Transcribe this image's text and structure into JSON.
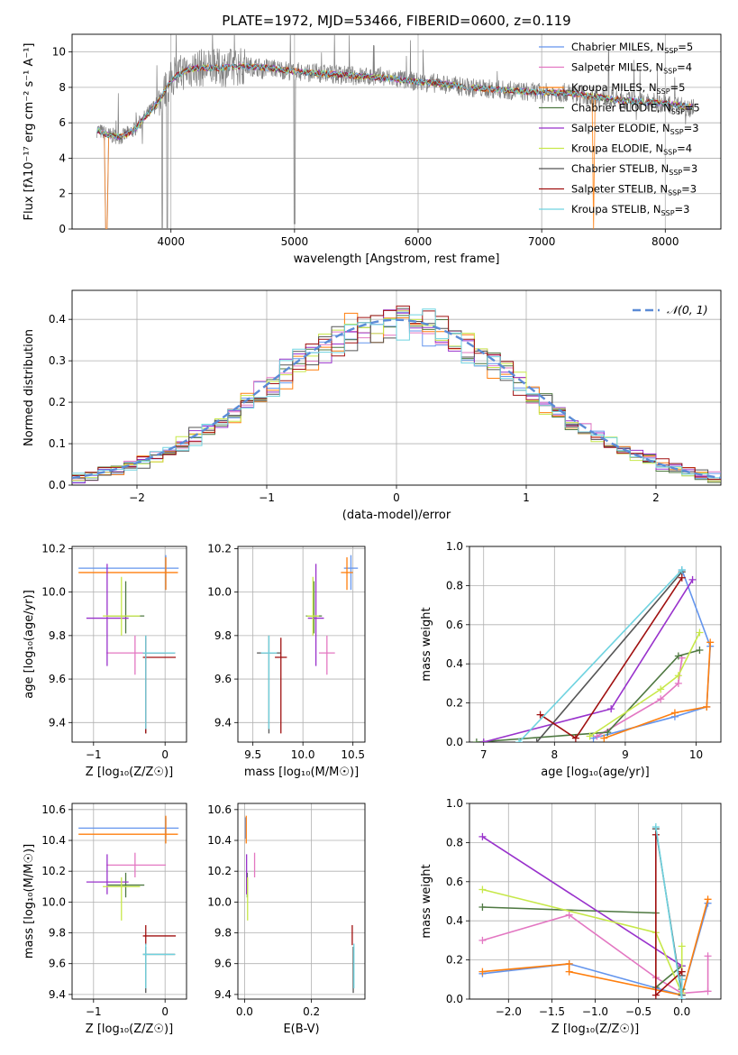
{
  "figure_title": "PLATE=1972, MJD=53466, FIBERID=0600, z=0.119",
  "colors": {
    "chabrier_miles": "#6495ed",
    "salpeter_miles": "#e377c2",
    "kroupa_miles": "#ff7f0e",
    "chabrier_elodie": "#4f7942",
    "salpeter_elodie": "#9932cc",
    "kroupa_elodie": "#c7e84a",
    "chabrier_stelib": "#555555",
    "salpeter_stelib": "#a01010",
    "kroupa_stelib": "#6fd3e0",
    "data": "#808080",
    "grid": "#b0b0b0"
  },
  "legend_spectrum": [
    "Chabrier MILES, N_SSP=5",
    "Salpeter MILES, N_SSP=4",
    "Kroupa MILES, N_SSP=5",
    "Chabrier ELODIE, N_SSP=5",
    "Salpeter ELODIE, N_SSP=3",
    "Kroupa ELODIE, N_SSP=4",
    "Chabrier STELIB, N_SSP=3",
    "Salpeter STELIB, N_SSP=3",
    "Kroupa STELIB, N_SSP=3"
  ],
  "legend_hist": "𝒩(0, 1)",
  "chart_data": [
    {
      "id": "spectrum",
      "type": "line",
      "xlabel": "wavelength [Angstrom, rest frame]",
      "ylabel": "Flux [fλ10⁻¹⁷ erg cm⁻² s⁻¹ A⁻¹]",
      "xlim": [
        3200,
        8450
      ],
      "ylim": [
        0,
        11
      ],
      "xticks": [
        4000,
        5000,
        6000,
        7000,
        8000
      ],
      "yticks": [
        0,
        2,
        4,
        6,
        8,
        10
      ],
      "continuum_x": [
        3400,
        3500,
        3600,
        3700,
        3800,
        3900,
        4000,
        4100,
        4200,
        4400,
        4600,
        4800,
        5000,
        5200,
        5400,
        5600,
        5800,
        6000,
        6200,
        6400,
        6600,
        6800,
        7000,
        7200,
        7400,
        7600,
        7800,
        8000,
        8200
      ],
      "continuum_y": [
        5.6,
        5.3,
        5.2,
        5.6,
        6.4,
        7.2,
        8.4,
        8.9,
        9.1,
        9.1,
        9.2,
        9.1,
        8.9,
        8.8,
        8.7,
        8.6,
        8.5,
        8.3,
        8.2,
        8.0,
        7.9,
        7.8,
        7.7,
        7.7,
        7.5,
        7.3,
        7.2,
        7.1,
        6.9
      ]
    },
    {
      "id": "residual_hist",
      "type": "line",
      "xlabel": "(data-model)/error",
      "ylabel": "Normed distribution",
      "xlim": [
        -2.5,
        2.5
      ],
      "ylim": [
        0,
        0.47
      ],
      "xticks": [
        -2,
        -1,
        0,
        1,
        2
      ],
      "yticks": [
        0.0,
        0.1,
        0.2,
        0.3,
        0.4
      ],
      "normal_mu": 0,
      "normal_sigma": 1
    },
    {
      "id": "age_vs_Z",
      "type": "scatter",
      "xlabel": "Z [log₁₀(Z/Z☉)]",
      "ylabel": "age  [log₁₀(age/yr)]",
      "xlim": [
        -1.3,
        0.3
      ],
      "ylim": [
        9.31,
        10.21
      ],
      "xticks": [
        -1,
        0
      ],
      "yticks": [
        9.4,
        9.6,
        9.8,
        10.0,
        10.2
      ],
      "points": [
        {
          "model": "chabrier_miles",
          "x": 0.01,
          "y": 10.11,
          "xerr_lo": 1.22,
          "xerr_hi": 0.18,
          "yerr_lo": 0.1,
          "yerr_hi": 0.06
        },
        {
          "model": "kroupa_miles",
          "x": 0.01,
          "y": 10.09,
          "xerr_lo": 1.22,
          "xerr_hi": 0.17,
          "yerr_lo": 0.08,
          "yerr_hi": 0.07
        },
        {
          "model": "salpeter_miles",
          "x": -0.42,
          "y": 9.72,
          "xerr_lo": 0.4,
          "xerr_hi": 0.43,
          "yerr_lo": 0.1,
          "yerr_hi": 0.08
        },
        {
          "model": "chabrier_elodie",
          "x": -0.55,
          "y": 9.89,
          "xerr_lo": 0.25,
          "xerr_hi": 0.26,
          "yerr_lo": 0.08,
          "yerr_hi": 0.16
        },
        {
          "model": "salpeter_elodie",
          "x": -0.81,
          "y": 9.88,
          "xerr_lo": 0.29,
          "xerr_hi": 0.3,
          "yerr_lo": 0.22,
          "yerr_hi": 0.25
        },
        {
          "model": "kroupa_elodie",
          "x": -0.61,
          "y": 9.89,
          "xerr_lo": 0.26,
          "xerr_hi": 0.26,
          "yerr_lo": 0.09,
          "yerr_hi": 0.18
        },
        {
          "model": "chabrier_stelib",
          "x": -0.27,
          "y": 9.72,
          "xerr_lo": 0.04,
          "xerr_hi": 0.41,
          "yerr_lo": 0.37,
          "yerr_hi": 0.08
        },
        {
          "model": "salpeter_stelib",
          "x": -0.27,
          "y": 9.7,
          "xerr_lo": 0.04,
          "xerr_hi": 0.42,
          "yerr_lo": 0.35,
          "yerr_hi": 0.09
        },
        {
          "model": "kroupa_stelib",
          "x": -0.27,
          "y": 9.72,
          "xerr_lo": 0.04,
          "xerr_hi": 0.41,
          "yerr_lo": 0.35,
          "yerr_hi": 0.08
        }
      ]
    },
    {
      "id": "age_vs_mass",
      "type": "scatter",
      "xlabel": "mass [log₁₀(M/M☉)]",
      "ylabel": "",
      "xlim": [
        9.35,
        10.62
      ],
      "ylim": [
        9.31,
        10.21
      ],
      "xticks": [
        9.5,
        10.0,
        10.5
      ],
      "yticks": [
        9.4,
        9.6,
        9.8,
        10.0,
        10.2
      ],
      "points": [
        {
          "model": "chabrier_miles",
          "x": 10.48,
          "y": 10.11,
          "xerr_lo": 0.07,
          "xerr_hi": 0.07,
          "yerr_lo": 0.1,
          "yerr_hi": 0.06
        },
        {
          "model": "kroupa_miles",
          "x": 10.44,
          "y": 10.09,
          "xerr_lo": 0.06,
          "xerr_hi": 0.06,
          "yerr_lo": 0.08,
          "yerr_hi": 0.07
        },
        {
          "model": "salpeter_miles",
          "x": 10.24,
          "y": 9.72,
          "xerr_lo": 0.08,
          "xerr_hi": 0.08,
          "yerr_lo": 0.1,
          "yerr_hi": 0.08
        },
        {
          "model": "chabrier_elodie",
          "x": 10.11,
          "y": 9.89,
          "xerr_lo": 0.08,
          "xerr_hi": 0.08,
          "yerr_lo": 0.08,
          "yerr_hi": 0.16
        },
        {
          "model": "salpeter_elodie",
          "x": 10.13,
          "y": 9.88,
          "xerr_lo": 0.08,
          "xerr_hi": 0.08,
          "yerr_lo": 0.22,
          "yerr_hi": 0.25
        },
        {
          "model": "kroupa_elodie",
          "x": 10.1,
          "y": 9.89,
          "xerr_lo": 0.06,
          "xerr_hi": 0.06,
          "yerr_lo": 0.09,
          "yerr_hi": 0.18
        },
        {
          "model": "chabrier_stelib",
          "x": 9.66,
          "y": 9.72,
          "xerr_lo": 0.12,
          "xerr_hi": 0.12,
          "yerr_lo": 0.37,
          "yerr_hi": 0.08
        },
        {
          "model": "salpeter_stelib",
          "x": 9.78,
          "y": 9.7,
          "xerr_lo": 0.06,
          "xerr_hi": 0.06,
          "yerr_lo": 0.35,
          "yerr_hi": 0.09
        },
        {
          "model": "kroupa_stelib",
          "x": 9.66,
          "y": 9.72,
          "xerr_lo": 0.08,
          "xerr_hi": 0.08,
          "yerr_lo": 0.35,
          "yerr_hi": 0.08
        }
      ]
    },
    {
      "id": "weight_vs_age",
      "type": "line",
      "xlabel": "age  [log₁₀(age/yr)]",
      "ylabel": "mass weight",
      "xlim": [
        6.8,
        10.35
      ],
      "ylim": [
        0,
        1.0
      ],
      "xticks": [
        7,
        8,
        9,
        10
      ],
      "yticks": [
        0.0,
        0.2,
        0.4,
        0.6,
        0.8,
        1.0
      ],
      "series": [
        {
          "model": "chabrier_miles",
          "x": [
            8.55,
            9.7,
            10.15,
            10.2,
            9.8
          ],
          "y": [
            0.02,
            0.13,
            0.18,
            0.49,
            0.88
          ]
        },
        {
          "model": "kroupa_miles",
          "x": [
            8.7,
            9.7,
            10.15,
            10.2
          ],
          "y": [
            0.02,
            0.15,
            0.18,
            0.51
          ]
        },
        {
          "model": "salpeter_miles",
          "x": [
            8.6,
            9.5,
            9.75,
            9.8
          ],
          "y": [
            0.03,
            0.22,
            0.3,
            0.43
          ]
        },
        {
          "model": "chabrier_elodie",
          "x": [
            6.9,
            8.75,
            9.75,
            10.05
          ],
          "y": [
            0.0,
            0.05,
            0.44,
            0.47
          ]
        },
        {
          "model": "salpeter_elodie",
          "x": [
            7.0,
            8.8,
            9.95
          ],
          "y": [
            0.0,
            0.17,
            0.83
          ]
        },
        {
          "model": "kroupa_elodie",
          "x": [
            8.5,
            9.5,
            9.75,
            10.05
          ],
          "y": [
            0.03,
            0.27,
            0.34,
            0.56
          ]
        },
        {
          "model": "chabrier_stelib",
          "x": [
            7.75,
            9.8
          ],
          "y": [
            0.0,
            0.87
          ]
        },
        {
          "model": "salpeter_stelib",
          "x": [
            7.8,
            8.3,
            9.8
          ],
          "y": [
            0.14,
            0.02,
            0.84
          ]
        },
        {
          "model": "kroupa_stelib",
          "x": [
            7.5,
            9.8
          ],
          "y": [
            0.0,
            0.88
          ]
        }
      ]
    },
    {
      "id": "mass_vs_Z",
      "type": "scatter",
      "xlabel": "Z [log₁₀(Z/Z☉)]",
      "ylabel": "mass [log₁₀(M/M☉)]",
      "xlim": [
        -1.3,
        0.3
      ],
      "ylim": [
        9.37,
        10.64
      ],
      "xticks": [
        -1,
        0
      ],
      "yticks": [
        9.4,
        9.6,
        9.8,
        10.0,
        10.2,
        10.4,
        10.6
      ],
      "points": [
        {
          "model": "chabrier_miles",
          "x": 0.01,
          "y": 10.48,
          "xerr_lo": 1.22,
          "xerr_hi": 0.18,
          "yerr_lo": 0.07,
          "yerr_hi": 0.07
        },
        {
          "model": "kroupa_miles",
          "x": 0.01,
          "y": 10.44,
          "xerr_lo": 1.22,
          "xerr_hi": 0.17,
          "yerr_lo": 0.06,
          "yerr_hi": 0.12
        },
        {
          "model": "salpeter_miles",
          "x": -0.42,
          "y": 10.24,
          "xerr_lo": 0.4,
          "xerr_hi": 0.43,
          "yerr_lo": 0.08,
          "yerr_hi": 0.08
        },
        {
          "model": "chabrier_elodie",
          "x": -0.55,
          "y": 10.11,
          "xerr_lo": 0.25,
          "xerr_hi": 0.26,
          "yerr_lo": 0.08,
          "yerr_hi": 0.08
        },
        {
          "model": "salpeter_elodie",
          "x": -0.81,
          "y": 10.13,
          "xerr_lo": 0.29,
          "xerr_hi": 0.3,
          "yerr_lo": 0.08,
          "yerr_hi": 0.18
        },
        {
          "model": "kroupa_elodie",
          "x": -0.61,
          "y": 10.1,
          "xerr_lo": 0.26,
          "xerr_hi": 0.26,
          "yerr_lo": 0.22,
          "yerr_hi": 0.06
        },
        {
          "model": "chabrier_stelib",
          "x": -0.27,
          "y": 9.66,
          "xerr_lo": 0.04,
          "xerr_hi": 0.41,
          "yerr_lo": 0.25,
          "yerr_hi": 0.05
        },
        {
          "model": "salpeter_stelib",
          "x": -0.27,
          "y": 9.78,
          "xerr_lo": 0.04,
          "xerr_hi": 0.42,
          "yerr_lo": 0.06,
          "yerr_hi": 0.07
        },
        {
          "model": "kroupa_stelib",
          "x": -0.27,
          "y": 9.66,
          "xerr_lo": 0.04,
          "xerr_hi": 0.41,
          "yerr_lo": 0.22,
          "yerr_hi": 0.07
        }
      ]
    },
    {
      "id": "mass_vs_ebv",
      "type": "scatter",
      "xlabel": "E(B-V)",
      "ylabel": "",
      "xlim": [
        -0.02,
        0.36
      ],
      "ylim": [
        9.37,
        10.64
      ],
      "xticks": [
        0.0,
        0.2
      ],
      "yticks": [
        9.4,
        9.6,
        9.8,
        10.0,
        10.2,
        10.4,
        10.6
      ],
      "points": [
        {
          "model": "chabrier_miles",
          "x": 0.003,
          "y": 10.48,
          "yerr_lo": 0.07,
          "yerr_hi": 0.07
        },
        {
          "model": "kroupa_miles",
          "x": 0.005,
          "y": 10.44,
          "yerr_lo": 0.06,
          "yerr_hi": 0.12
        },
        {
          "model": "salpeter_miles",
          "x": 0.03,
          "y": 10.24,
          "yerr_lo": 0.08,
          "yerr_hi": 0.08
        },
        {
          "model": "chabrier_elodie",
          "x": 0.008,
          "y": 10.11,
          "yerr_lo": 0.08,
          "yerr_hi": 0.08
        },
        {
          "model": "salpeter_elodie",
          "x": 0.006,
          "y": 10.13,
          "yerr_lo": 0.08,
          "yerr_hi": 0.18
        },
        {
          "model": "kroupa_elodie",
          "x": 0.009,
          "y": 10.1,
          "yerr_lo": 0.22,
          "yerr_hi": 0.06
        },
        {
          "model": "chabrier_stelib",
          "x": 0.325,
          "y": 9.66,
          "yerr_lo": 0.25,
          "yerr_hi": 0.05
        },
        {
          "model": "salpeter_stelib",
          "x": 0.322,
          "y": 9.78,
          "yerr_lo": 0.06,
          "yerr_hi": 0.07
        },
        {
          "model": "kroupa_stelib",
          "x": 0.327,
          "y": 9.66,
          "yerr_lo": 0.22,
          "yerr_hi": 0.07
        }
      ]
    },
    {
      "id": "weight_vs_Z",
      "type": "line",
      "xlabel": "Z [log₁₀(Z/Z☉)]",
      "ylabel": "mass weight",
      "xlim": [
        -2.45,
        0.45
      ],
      "ylim": [
        0,
        1.0
      ],
      "xticks": [
        -2.0,
        -1.5,
        -1.0,
        -0.5,
        0.0
      ],
      "yticks": [
        0.0,
        0.2,
        0.4,
        0.6,
        0.8,
        1.0
      ],
      "series": [
        {
          "model": "chabrier_miles",
          "x": [
            -2.3,
            -1.3,
            0.0,
            0.3
          ],
          "y": [
            0.13,
            0.18,
            0.02,
            0.49
          ]
        },
        {
          "model": "kroupa_miles",
          "x": [
            -2.3,
            -1.3,
            -1.3,
            0.0,
            0.3
          ],
          "y": [
            0.14,
            0.18,
            0.14,
            0.02,
            0.51
          ]
        },
        {
          "model": "salpeter_miles",
          "x": [
            -2.3,
            -1.3,
            -0.3,
            0.0,
            0.3,
            0.3
          ],
          "y": [
            0.3,
            0.43,
            0.11,
            0.03,
            0.04,
            0.22
          ]
        },
        {
          "model": "chabrier_elodie",
          "x": [
            -2.3,
            -0.3,
            -0.3,
            0.0,
            0.0
          ],
          "y": [
            0.47,
            0.44,
            0.06,
            0.17,
            0.05
          ]
        },
        {
          "model": "salpeter_elodie",
          "x": [
            -2.3,
            0.0,
            0.0
          ],
          "y": [
            0.83,
            0.17,
            0.0
          ]
        },
        {
          "model": "kroupa_elodie",
          "x": [
            -2.3,
            -0.3,
            0.0,
            0.0
          ],
          "y": [
            0.56,
            0.34,
            0.03,
            0.27
          ]
        },
        {
          "model": "chabrier_stelib",
          "x": [
            -0.3,
            0.0,
            0.0
          ],
          "y": [
            0.87,
            0.02,
            0.12
          ]
        },
        {
          "model": "salpeter_stelib",
          "x": [
            -0.3,
            -0.3,
            0.0
          ],
          "y": [
            0.84,
            0.02,
            0.14
          ]
        },
        {
          "model": "kroupa_stelib",
          "x": [
            -0.3,
            0.0,
            0.0
          ],
          "y": [
            0.88,
            0.0,
            0.1
          ]
        }
      ]
    }
  ]
}
